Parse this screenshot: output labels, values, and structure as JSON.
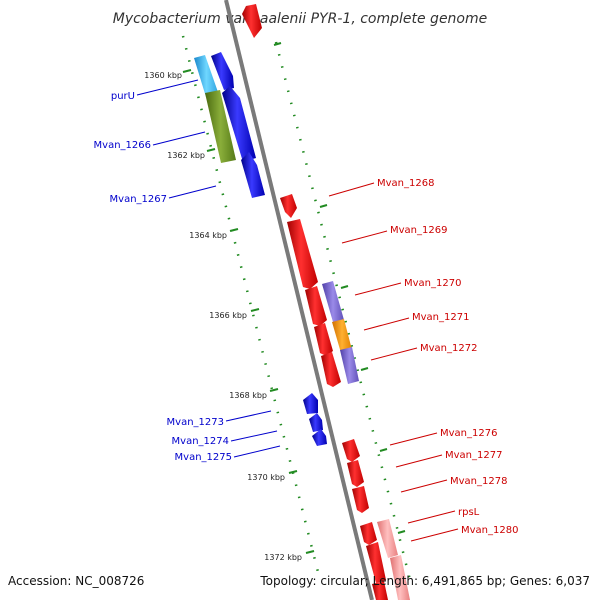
{
  "title": "Mycobacterium vanbaalenii PYR-1, complete genome",
  "scale_labels": [
    "1360 kbp",
    "1362 kbp",
    "1364 kbp",
    "1366 kbp",
    "1368 kbp",
    "1370 kbp",
    "1372 kbp"
  ],
  "gene_labels_left": [
    "purU",
    "Mvan_1266",
    "Mvan_1267",
    "Mvan_1273",
    "Mvan_1274",
    "Mvan_1275"
  ],
  "gene_labels_right": [
    "Mvan_1268",
    "Mvan_1269",
    "Mvan_1270",
    "Mvan_1271",
    "Mvan_1272",
    "Mvan_1276",
    "Mvan_1277",
    "Mvan_1278",
    "rpsL",
    "Mvan_1280"
  ],
  "footer": {
    "accession": "Accession: NC_008726",
    "summary": "Topology: circular; Length: 6,491,865 bp; Genes: 6,037"
  },
  "colors": {
    "forward_strand": "#0000ee",
    "reverse_strand": "#ee0000",
    "backbone": "#808080",
    "ticks": "#228b22",
    "cyan_feature": "#33bbee",
    "olive_feature": "#6b8e23",
    "purple_feature": "#7b68c8",
    "orange_feature": "#ff9900"
  }
}
